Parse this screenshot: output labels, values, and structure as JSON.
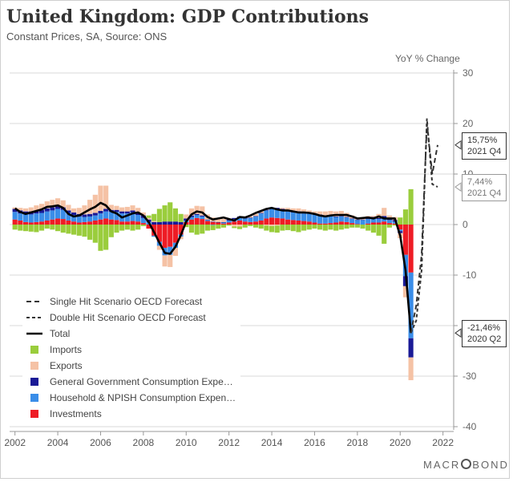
{
  "title": "United Kingdom: GDP Contributions",
  "subtitle": "Constant Prices, SA, Source: ONS",
  "brand": {
    "pre": "MACR",
    "post": "BOND"
  },
  "chart_data": {
    "type": "bar",
    "title": "United Kingdom: GDP Contributions",
    "subtitle": "Constant Prices, SA, Source: ONS",
    "ylabel": "YoY % Change",
    "ylim": [
      -40,
      30
    ],
    "yticks": [
      "30",
      "20",
      "10",
      "0",
      "-10",
      "-20",
      "-30",
      "-40"
    ],
    "xticks": [
      "2002",
      "2004",
      "2006",
      "2008",
      "2010",
      "2012",
      "2014",
      "2016",
      "2018",
      "2020",
      "2022"
    ],
    "xlim": [
      2001.75,
      2022.5
    ],
    "grid": true,
    "legend_placement": "bottom-left",
    "colors": {
      "imports": "#9acd3c",
      "exports": "#f5c2a5",
      "government": "#1a1a96",
      "household": "#3a8de8",
      "investments": "#ee1c25",
      "total": "#000000",
      "forecast": "#333333"
    },
    "legend": [
      {
        "label": "Single Hit Scenario OECD Forecast",
        "key": "single"
      },
      {
        "label": "Double Hit Scenario OECD Forecast",
        "key": "double"
      },
      {
        "label": "Total",
        "key": "total"
      },
      {
        "label": "Imports",
        "key": "imports"
      },
      {
        "label": "Exports",
        "key": "exports"
      },
      {
        "label": "General Government Consumption Expe…",
        "key": "government"
      },
      {
        "label": "Household & NPISH Consumption Expen…",
        "key": "household"
      },
      {
        "label": "Investments",
        "key": "investments"
      }
    ],
    "stacked_bars": [
      {
        "year": 2002.0,
        "imports": -1.0,
        "exports": 0.3,
        "government": 0.6,
        "household": 1.5,
        "investments": 1.0
      },
      {
        "year": 2002.25,
        "imports": -1.2,
        "exports": 0.5,
        "government": 0.6,
        "household": 1.4,
        "investments": 0.8
      },
      {
        "year": 2002.5,
        "imports": -1.3,
        "exports": 0.6,
        "government": 0.6,
        "household": 1.5,
        "investments": 0.5
      },
      {
        "year": 2002.75,
        "imports": -1.4,
        "exports": 0.8,
        "government": 0.6,
        "household": 1.6,
        "investments": 0.4
      },
      {
        "year": 2003.0,
        "imports": -1.5,
        "exports": 1.0,
        "government": 0.6,
        "household": 1.7,
        "investments": 0.5
      },
      {
        "year": 2003.25,
        "imports": -1.2,
        "exports": 1.2,
        "government": 0.6,
        "household": 1.7,
        "investments": 0.6
      },
      {
        "year": 2003.5,
        "imports": -0.8,
        "exports": 1.4,
        "government": 0.6,
        "household": 1.8,
        "investments": 0.8
      },
      {
        "year": 2003.75,
        "imports": -1.0,
        "exports": 1.5,
        "government": 0.6,
        "household": 1.8,
        "investments": 1.0
      },
      {
        "year": 2004.0,
        "imports": -1.3,
        "exports": 1.6,
        "government": 0.5,
        "household": 1.9,
        "investments": 1.2
      },
      {
        "year": 2004.25,
        "imports": -1.6,
        "exports": 1.4,
        "government": 0.5,
        "household": 1.8,
        "investments": 1.1
      },
      {
        "year": 2004.5,
        "imports": -1.8,
        "exports": 1.1,
        "government": 0.5,
        "household": 1.5,
        "investments": 0.8
      },
      {
        "year": 2004.75,
        "imports": -2.0,
        "exports": 0.8,
        "government": 0.5,
        "household": 1.3,
        "investments": 0.6
      },
      {
        "year": 2005.0,
        "imports": -2.2,
        "exports": 1.2,
        "government": 0.5,
        "household": 1.2,
        "investments": 0.4
      },
      {
        "year": 2005.25,
        "imports": -2.4,
        "exports": 1.8,
        "government": 0.5,
        "household": 1.0,
        "investments": 0.5
      },
      {
        "year": 2005.5,
        "imports": -3.0,
        "exports": 2.8,
        "government": 0.5,
        "household": 1.0,
        "investments": 0.6
      },
      {
        "year": 2005.75,
        "imports": -3.6,
        "exports": 3.6,
        "government": 0.5,
        "household": 1.0,
        "investments": 0.8
      },
      {
        "year": 2006.0,
        "imports": -5.2,
        "exports": 5.0,
        "government": 0.5,
        "household": 1.2,
        "investments": 1.0
      },
      {
        "year": 2006.25,
        "imports": -5.0,
        "exports": 4.6,
        "government": 0.5,
        "household": 1.4,
        "investments": 1.2
      },
      {
        "year": 2006.5,
        "imports": -2.5,
        "exports": 1.0,
        "government": 0.4,
        "household": 1.5,
        "investments": 1.0
      },
      {
        "year": 2006.75,
        "imports": -1.6,
        "exports": 0.8,
        "government": 0.4,
        "household": 1.6,
        "investments": 0.9
      },
      {
        "year": 2007.0,
        "imports": -1.2,
        "exports": 0.8,
        "government": 0.4,
        "household": 1.6,
        "investments": 0.6
      },
      {
        "year": 2007.25,
        "imports": -1.0,
        "exports": 0.9,
        "government": 0.4,
        "household": 1.6,
        "investments": 0.6
      },
      {
        "year": 2007.5,
        "imports": -1.2,
        "exports": 1.0,
        "government": 0.4,
        "household": 1.7,
        "investments": 0.7
      },
      {
        "year": 2007.75,
        "imports": -1.0,
        "exports": 1.0,
        "government": 0.4,
        "household": 1.3,
        "investments": 0.6
      },
      {
        "year": 2008.0,
        "imports": -0.3,
        "exports": 0.6,
        "government": 0.5,
        "household": 1.0,
        "investments": 0.3
      },
      {
        "year": 2008.25,
        "imports": 0.5,
        "exports": 0.3,
        "government": 0.5,
        "household": 0.5,
        "investments": -0.8
      },
      {
        "year": 2008.5,
        "imports": 1.4,
        "exports": 0.2,
        "government": 0.5,
        "household": -0.2,
        "investments": -2.2
      },
      {
        "year": 2008.75,
        "imports": 2.6,
        "exports": -0.8,
        "government": 0.5,
        "household": -0.8,
        "investments": -3.4
      },
      {
        "year": 2009.0,
        "imports": 3.2,
        "exports": -2.2,
        "government": 0.6,
        "household": -1.5,
        "investments": -4.6
      },
      {
        "year": 2009.25,
        "imports": 3.8,
        "exports": -2.4,
        "government": 0.6,
        "household": -1.6,
        "investments": -4.4
      },
      {
        "year": 2009.5,
        "imports": 2.6,
        "exports": -1.6,
        "government": 0.6,
        "household": -1.0,
        "investments": -3.6
      },
      {
        "year": 2009.75,
        "imports": 1.6,
        "exports": -0.5,
        "government": 0.5,
        "household": -0.4,
        "investments": -2.0
      },
      {
        "year": 2010.0,
        "imports": -0.5,
        "exports": 0.8,
        "government": 0.4,
        "household": 0.3,
        "investments": 0.5
      },
      {
        "year": 2010.25,
        "imports": -1.6,
        "exports": 1.4,
        "government": 0.3,
        "household": 0.5,
        "investments": 1.0
      },
      {
        "year": 2010.5,
        "imports": -2.0,
        "exports": 1.6,
        "government": 0.2,
        "household": 0.6,
        "investments": 1.3
      },
      {
        "year": 2010.75,
        "imports": -1.8,
        "exports": 1.8,
        "government": 0.2,
        "household": 0.5,
        "investments": 1.1
      },
      {
        "year": 2011.0,
        "imports": -1.2,
        "exports": 1.0,
        "government": 0.1,
        "household": 0.2,
        "investments": 0.7
      },
      {
        "year": 2011.25,
        "imports": -1.0,
        "exports": 0.8,
        "government": 0.1,
        "household": -0.1,
        "investments": 0.5
      },
      {
        "year": 2011.5,
        "imports": -0.8,
        "exports": 0.6,
        "government": 0.1,
        "household": 0.0,
        "investments": 0.4
      },
      {
        "year": 2011.75,
        "imports": -0.6,
        "exports": 0.6,
        "government": 0.1,
        "household": 0.2,
        "investments": 0.2
      },
      {
        "year": 2012.0,
        "imports": -0.2,
        "exports": 0.2,
        "government": 0.2,
        "household": 0.4,
        "investments": 0.4
      },
      {
        "year": 2012.25,
        "imports": -0.3,
        "exports": -0.4,
        "government": 0.2,
        "household": 0.5,
        "investments": 0.6
      },
      {
        "year": 2012.5,
        "imports": -0.5,
        "exports": -0.4,
        "government": 0.2,
        "household": 0.6,
        "investments": 0.8
      },
      {
        "year": 2012.75,
        "imports": -0.6,
        "exports": 0.2,
        "government": 0.2,
        "household": 0.6,
        "investments": 0.6
      },
      {
        "year": 2013.0,
        "imports": -0.3,
        "exports": 0.2,
        "government": 0.1,
        "household": 0.8,
        "investments": 0.5
      },
      {
        "year": 2013.25,
        "imports": -0.6,
        "exports": 0.4,
        "government": 0.1,
        "household": 1.0,
        "investments": 0.6
      },
      {
        "year": 2013.5,
        "imports": -0.8,
        "exports": 0.3,
        "government": 0.1,
        "household": 1.4,
        "investments": 0.8
      },
      {
        "year": 2013.75,
        "imports": -1.0,
        "exports": -0.2,
        "government": 0.1,
        "household": 1.6,
        "investments": 1.2
      },
      {
        "year": 2014.0,
        "imports": -1.2,
        "exports": -0.3,
        "government": 0.2,
        "household": 1.8,
        "investments": 1.4
      },
      {
        "year": 2014.25,
        "imports": -1.4,
        "exports": -0.2,
        "government": 0.3,
        "household": 1.7,
        "investments": 1.3
      },
      {
        "year": 2014.5,
        "imports": -1.2,
        "exports": 0.2,
        "government": 0.3,
        "household": 1.6,
        "investments": 1.2
      },
      {
        "year": 2014.75,
        "imports": -1.1,
        "exports": 0.4,
        "government": 0.3,
        "household": 1.6,
        "investments": 1.0
      },
      {
        "year": 2015.0,
        "imports": -1.3,
        "exports": 0.5,
        "government": 0.3,
        "household": 1.5,
        "investments": 0.9
      },
      {
        "year": 2015.25,
        "imports": -1.5,
        "exports": 0.6,
        "government": 0.3,
        "household": 1.5,
        "investments": 0.8
      },
      {
        "year": 2015.5,
        "imports": -1.2,
        "exports": 0.6,
        "government": 0.2,
        "household": 1.5,
        "investments": 0.7
      },
      {
        "year": 2015.75,
        "imports": -1.0,
        "exports": 0.4,
        "government": 0.2,
        "household": 1.6,
        "investments": 0.6
      },
      {
        "year": 2016.0,
        "imports": -0.8,
        "exports": 0.4,
        "government": 0.2,
        "household": 1.6,
        "investments": 0.4
      },
      {
        "year": 2016.25,
        "imports": -1.0,
        "exports": 0.6,
        "government": 0.2,
        "household": 1.6,
        "investments": 0.2
      },
      {
        "year": 2016.5,
        "imports": -1.2,
        "exports": 0.8,
        "government": 0.1,
        "household": 1.5,
        "investments": 0.2
      },
      {
        "year": 2016.75,
        "imports": -1.0,
        "exports": 0.9,
        "government": 0.1,
        "household": 1.4,
        "investments": 0.3
      },
      {
        "year": 2017.0,
        "imports": -1.2,
        "exports": 1.0,
        "government": 0.1,
        "household": 1.1,
        "investments": 0.4
      },
      {
        "year": 2017.25,
        "imports": -1.0,
        "exports": 1.0,
        "government": 0.1,
        "household": 1.0,
        "investments": 0.6
      },
      {
        "year": 2017.5,
        "imports": -0.8,
        "exports": 0.8,
        "government": 0.1,
        "household": 0.9,
        "investments": 0.5
      },
      {
        "year": 2017.75,
        "imports": -0.6,
        "exports": 0.6,
        "government": 0.1,
        "household": 0.8,
        "investments": 0.3
      },
      {
        "year": 2018.0,
        "imports": -0.6,
        "exports": 0.3,
        "government": 0.1,
        "household": 0.8,
        "investments": 0.1
      },
      {
        "year": 2018.25,
        "imports": -0.8,
        "exports": 0.2,
        "government": 0.1,
        "household": 0.9,
        "investments": 0.0
      },
      {
        "year": 2018.5,
        "imports": -1.2,
        "exports": 0.4,
        "government": 0.2,
        "household": 0.9,
        "investments": 0.2
      },
      {
        "year": 2018.75,
        "imports": -1.6,
        "exports": 0.2,
        "government": 0.2,
        "household": 0.9,
        "investments": 0.4
      },
      {
        "year": 2019.0,
        "imports": -2.2,
        "exports": 0.8,
        "government": 0.2,
        "household": 0.7,
        "investments": 0.4
      },
      {
        "year": 2019.25,
        "imports": -3.8,
        "exports": 1.6,
        "government": 0.4,
        "household": 0.7,
        "investments": 0.6
      },
      {
        "year": 2019.5,
        "imports": -0.6,
        "exports": 0.6,
        "government": 0.3,
        "household": 0.6,
        "investments": 0.3
      },
      {
        "year": 2019.75,
        "imports": -0.2,
        "exports": 0.6,
        "government": 0.3,
        "household": 0.4,
        "investments": 0.2
      },
      {
        "year": 2020.0,
        "imports": 1.4,
        "exports": -1.0,
        "government": -0.4,
        "household": -0.3,
        "investments": -1.0
      },
      {
        "year": 2020.25,
        "imports": 3.0,
        "exports": -2.2,
        "government": -2.0,
        "household": -4.2,
        "investments": -6.0
      },
      {
        "year": 2020.5,
        "imports": 7.0,
        "exports": -4.5,
        "government": -3.8,
        "household": -13.0,
        "investments": -9.5
      }
    ],
    "total_line": {
      "years": [
        2002.0,
        2002.25,
        2002.5,
        2002.75,
        2003.0,
        2003.25,
        2003.5,
        2003.75,
        2004.0,
        2004.25,
        2004.5,
        2004.75,
        2005.0,
        2005.25,
        2005.5,
        2005.75,
        2006.0,
        2006.25,
        2006.5,
        2006.75,
        2007.0,
        2007.25,
        2007.5,
        2007.75,
        2008.0,
        2008.25,
        2008.5,
        2008.75,
        2009.0,
        2009.25,
        2009.5,
        2009.75,
        2010.0,
        2010.25,
        2010.5,
        2010.75,
        2011.0,
        2011.25,
        2011.5,
        2011.75,
        2012.0,
        2012.25,
        2012.5,
        2012.75,
        2013.0,
        2013.25,
        2013.5,
        2013.75,
        2014.0,
        2014.25,
        2014.5,
        2014.75,
        2015.0,
        2015.25,
        2015.5,
        2015.75,
        2016.0,
        2016.25,
        2016.5,
        2016.75,
        2017.0,
        2017.25,
        2017.5,
        2017.75,
        2018.0,
        2018.25,
        2018.5,
        2018.75,
        2019.0,
        2019.25,
        2019.5,
        2019.75,
        2020.0,
        2020.25,
        2020.5
      ],
      "values": [
        3.2,
        2.5,
        2.1,
        2.4,
        2.7,
        3.0,
        3.5,
        3.6,
        3.8,
        3.3,
        2.1,
        1.6,
        1.8,
        2.4,
        3.0,
        3.5,
        4.3,
        3.8,
        2.6,
        2.2,
        1.4,
        1.8,
        2.2,
        2.4,
        1.8,
        0.5,
        -1.5,
        -3.6,
        -5.6,
        -5.8,
        -4.4,
        -2.1,
        0.6,
        2.0,
        2.6,
        2.4,
        1.5,
        1.0,
        1.2,
        1.4,
        1.1,
        0.8,
        1.5,
        1.4,
        1.8,
        2.3,
        2.7,
        3.1,
        3.3,
        3.0,
        2.8,
        2.8,
        2.6,
        2.4,
        2.4,
        2.3,
        2.1,
        1.8,
        1.6,
        1.8,
        1.9,
        1.9,
        1.9,
        1.6,
        1.2,
        1.3,
        1.4,
        1.2,
        1.6,
        1.2,
        1.2,
        1.2,
        -2.2,
        -9.0,
        -21.46
      ]
    },
    "forecasts": {
      "single": {
        "years": [
          2020.5,
          2020.75,
          2021.0,
          2021.25,
          2021.5,
          2021.75
        ],
        "values": [
          -21.46,
          -16.0,
          -6.0,
          20.0,
          10.0,
          15.75
        ]
      },
      "double": {
        "years": [
          2020.5,
          2020.75,
          2021.0,
          2021.25,
          2021.5,
          2021.75
        ],
        "values": [
          -21.46,
          -19.0,
          -9.0,
          21.0,
          8.0,
          7.44
        ]
      }
    },
    "annotations": [
      {
        "value": "15,75%",
        "period": "2021 Q4",
        "y": 15.75,
        "style": "dark"
      },
      {
        "value": "7,44%",
        "period": "2021 Q4",
        "y": 7.44,
        "style": "grey"
      },
      {
        "value": "-21,46%",
        "period": "2020 Q2",
        "y": -21.46,
        "style": "dark"
      }
    ]
  }
}
